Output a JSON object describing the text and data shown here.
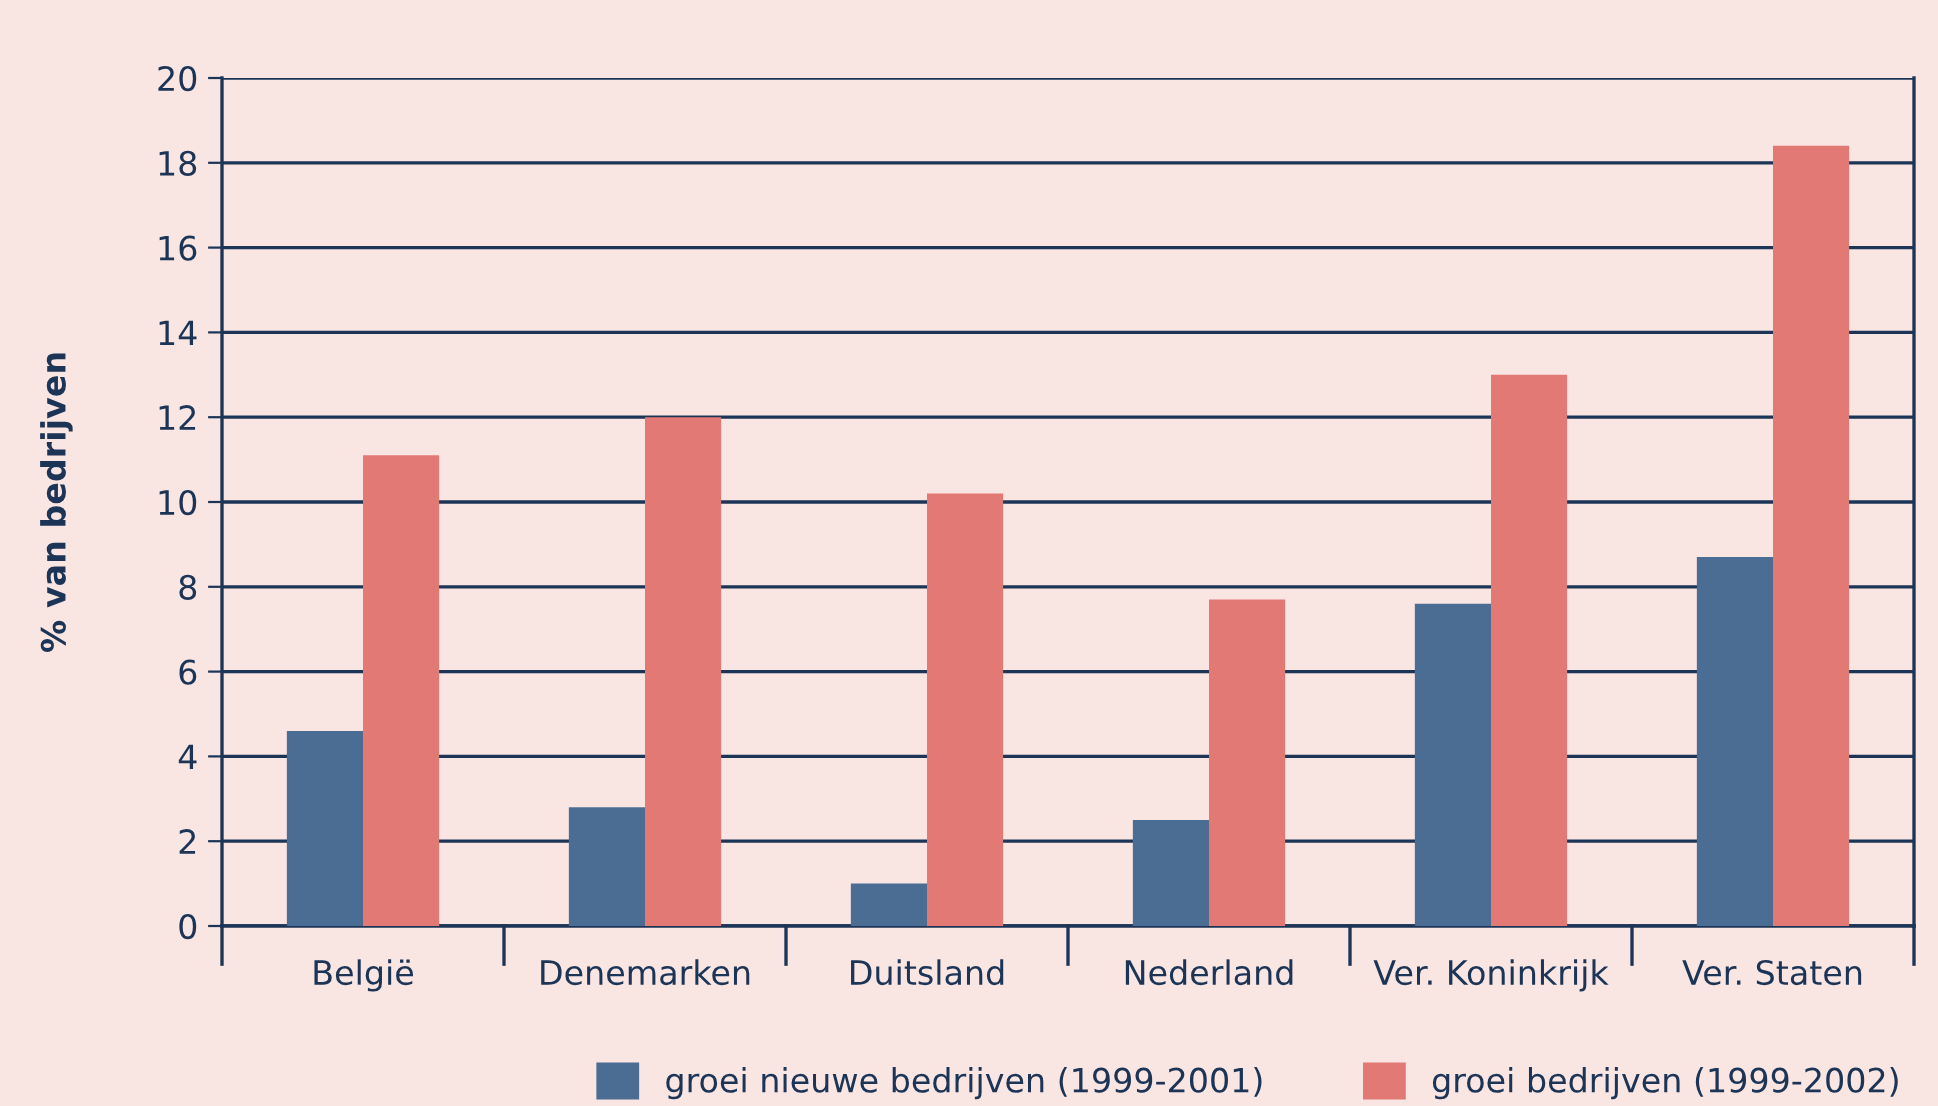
{
  "chart_data": {
    "type": "bar",
    "ylabel": "% van bedrijven",
    "categories": [
      "België",
      "Denemarken",
      "Duitsland",
      "Nederland",
      "Ver. Koninkrijk",
      "Ver. Staten"
    ],
    "series": [
      {
        "name": "groei nieuwe bedrijven (1999-2001)",
        "color": "#4c6d93",
        "values": [
          4.6,
          2.8,
          1.0,
          2.5,
          7.6,
          8.7
        ]
      },
      {
        "name": "groei bedrijven (1999-2002)",
        "color": "#e27975",
        "values": [
          11.1,
          12.0,
          10.2,
          7.7,
          13.0,
          18.4
        ]
      }
    ],
    "ylim": [
      0,
      20
    ],
    "yticks": [
      0,
      2,
      4,
      6,
      8,
      10,
      12,
      14,
      16,
      18,
      20
    ],
    "grid": "y",
    "legend": "bottom right"
  }
}
